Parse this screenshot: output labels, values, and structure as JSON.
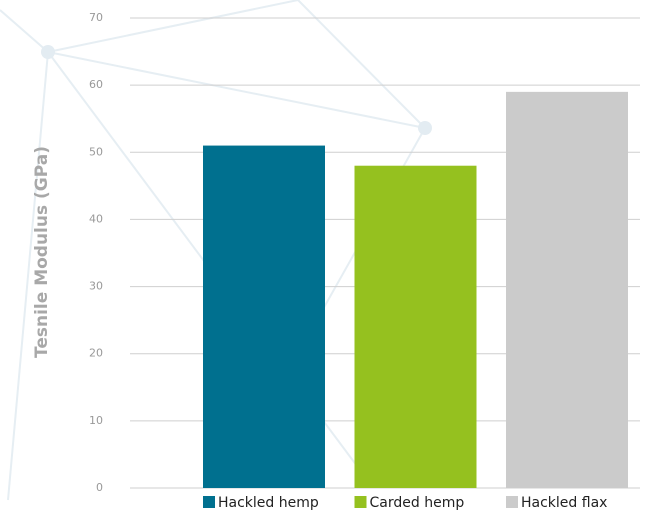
{
  "chart_data": {
    "type": "bar",
    "y_label": "Tesnile Modulus (GPa)",
    "series": [
      {
        "name": "Hackled hemp",
        "color": "#00708f",
        "values": [
          51
        ]
      },
      {
        "name": "Carded hemp",
        "color": "#95c11f",
        "values": [
          48
        ]
      },
      {
        "name": "Hackled flax",
        "color": "#cbcbcb",
        "values": [
          59
        ]
      }
    ],
    "ylim": [
      0,
      70
    ],
    "yticks": [
      0,
      10,
      20,
      30,
      40,
      50,
      60,
      70
    ],
    "grid": true,
    "legend": "bottom"
  }
}
